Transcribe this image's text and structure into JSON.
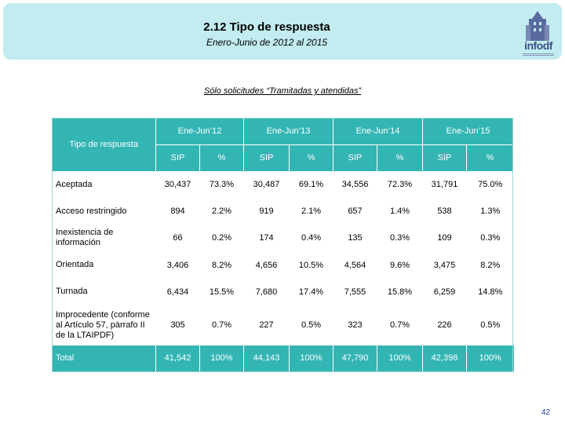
{
  "slide": {
    "title": "2.12 Tipo de respuesta",
    "subtitle": "Enero-Junio de 2012 al 2015",
    "filter_note": "Sólo solicitudes “Tramitadas y atendidas”",
    "logo_text": "infodf",
    "page_number": "42"
  },
  "table": {
    "corner_label": "Tipo de respuesta",
    "periods": [
      "Ene-Jun’12",
      "Ene-Jun’13",
      "Ene-Jun’14",
      "Ene-Jun’15"
    ],
    "subheaders": [
      "SIP",
      "%"
    ],
    "rows": [
      {
        "label": "Aceptada",
        "values": [
          "30,437",
          "73.3%",
          "30,487",
          "69.1%",
          "34,556",
          "72.3%",
          "31,791",
          "75.0%"
        ]
      },
      {
        "label": "Acceso restringido",
        "values": [
          "894",
          "2.2%",
          "919",
          "2.1%",
          "657",
          "1.4%",
          "538",
          "1.3%"
        ]
      },
      {
        "label": "Inexistencia de información",
        "values": [
          "66",
          "0.2%",
          "174",
          "0.4%",
          "135",
          "0.3%",
          "109",
          "0.3%"
        ]
      },
      {
        "label": "Orientada",
        "values": [
          "3,406",
          "8.2%",
          "4,656",
          "10.5%",
          "4,564",
          "9.6%",
          "3,475",
          "8.2%"
        ]
      },
      {
        "label": "Turnada",
        "values": [
          "6,434",
          "15.5%",
          "7,680",
          "17.4%",
          "7,555",
          "15.8%",
          "6,259",
          "14.8%"
        ]
      },
      {
        "label": "Improcedente (conforme al Artículo 57, párrafo II de la LTAIPDF)",
        "values": [
          "305",
          "0.7%",
          "227",
          "0.5%",
          "323",
          "0.7%",
          "226",
          "0.5%"
        ]
      }
    ],
    "total": {
      "label": "Total",
      "values": [
        "41,542",
        "100%",
        "44,143",
        "100%",
        "47,790",
        "100%",
        "42,398",
        "100%"
      ]
    }
  },
  "colors": {
    "header_band": "#c2ecef",
    "table_teal": "#33b5b3",
    "page_number": "#1f3c9a"
  }
}
